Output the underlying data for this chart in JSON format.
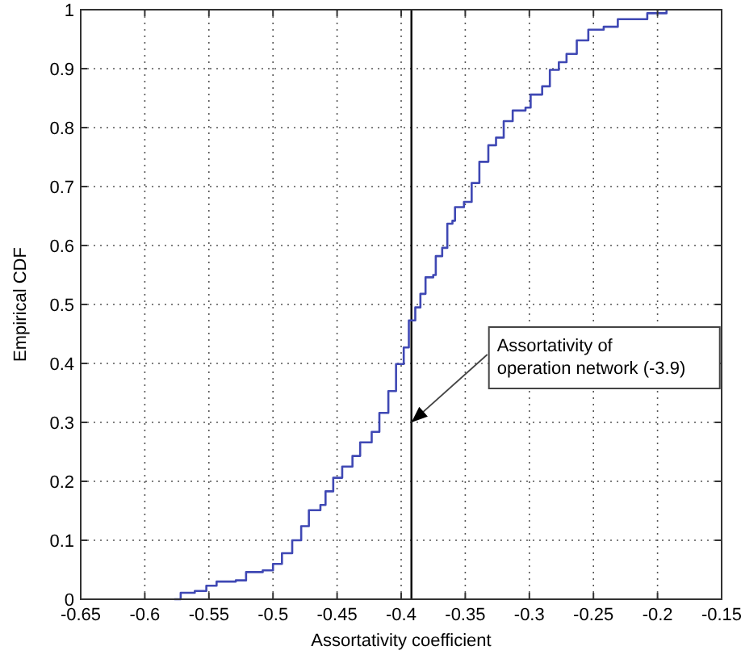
{
  "chart_data": {
    "type": "step",
    "xlabel": "Assortativity coefficient",
    "ylabel": "Empirical CDF",
    "xlim": [
      -0.65,
      -0.15
    ],
    "xticks": [
      -0.65,
      -0.6,
      -0.55,
      -0.5,
      -0.45,
      -0.4,
      -0.35,
      -0.3,
      -0.25,
      -0.2,
      -0.15
    ],
    "ylim": [
      0,
      1
    ],
    "yticks": [
      0,
      0.1,
      0.2,
      0.3,
      0.4,
      0.5,
      0.6,
      0.7,
      0.8,
      0.9,
      1
    ],
    "grid": true,
    "series": [
      {
        "color": "#3f48b4",
        "x": [
          -0.577,
          -0.572,
          -0.561,
          -0.552,
          -0.544,
          -0.529,
          -0.521,
          -0.508,
          -0.5,
          -0.493,
          -0.485,
          -0.478,
          -0.472,
          -0.463,
          -0.459,
          -0.453,
          -0.446,
          -0.438,
          -0.432,
          -0.423,
          -0.417,
          -0.41,
          -0.404,
          -0.398,
          -0.394,
          -0.389,
          -0.385,
          -0.381,
          -0.375,
          -0.373,
          -0.368,
          -0.364,
          -0.36,
          -0.358,
          -0.351,
          -0.345,
          -0.339,
          -0.332,
          -0.326,
          -0.32,
          -0.313,
          -0.303,
          -0.299,
          -0.29,
          -0.284,
          -0.277,
          -0.271,
          -0.263,
          -0.254,
          -0.242,
          -0.231,
          -0.214,
          -0.208,
          -0.197,
          -0.193
        ],
        "values": [
          0,
          0.011,
          0.014,
          0.023,
          0.03,
          0.032,
          0.046,
          0.049,
          0.06,
          0.078,
          0.1,
          0.124,
          0.151,
          0.16,
          0.183,
          0.206,
          0.225,
          0.243,
          0.266,
          0.284,
          0.316,
          0.353,
          0.399,
          0.427,
          0.473,
          0.495,
          0.518,
          0.546,
          0.55,
          0.582,
          0.596,
          0.637,
          0.642,
          0.665,
          0.674,
          0.706,
          0.742,
          0.77,
          0.783,
          0.811,
          0.829,
          0.834,
          0.856,
          0.87,
          0.898,
          0.911,
          0.925,
          0.948,
          0.966,
          0.971,
          0.984,
          0.984,
          0.994,
          0.994,
          1
        ]
      }
    ],
    "ref_lines": [
      {
        "axis": "x",
        "value": -0.392,
        "color": "#000000"
      }
    ],
    "annotations": [
      {
        "text": "Assortativity of operation network (-3.9)",
        "x": -0.392,
        "y": 0.3
      }
    ]
  }
}
